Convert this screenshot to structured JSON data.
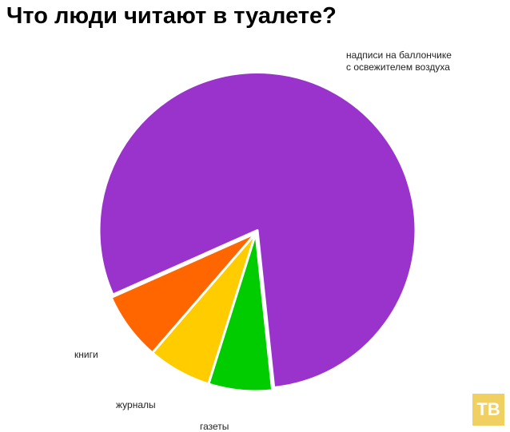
{
  "chart_data": {
    "type": "pie",
    "title": "Что люди читают в туалете?",
    "categories": [
      "надписи на баллончике\nс освежителем воздуха",
      "газеты",
      "журналы",
      "книги"
    ],
    "values": [
      80,
      6.5,
      6.5,
      7
    ],
    "colors": [
      "#9933cc",
      "#00cc00",
      "#ffcc00",
      "#ff6600"
    ]
  },
  "watermark": "ТВ"
}
